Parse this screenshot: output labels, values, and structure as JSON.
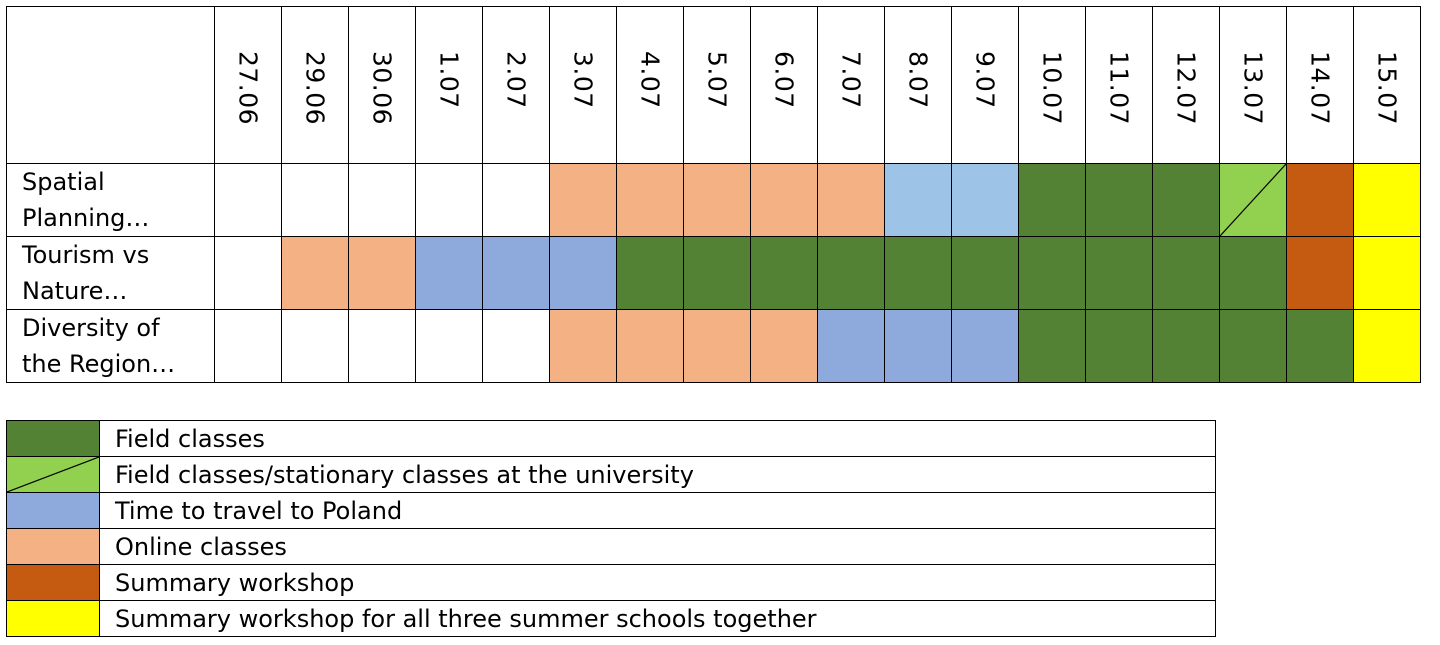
{
  "colors": {
    "field": "#548235",
    "mixed": "#92D050",
    "travel": "#8EA9DB",
    "travel_light": "#9DC3E6",
    "online": "#F4B183",
    "workshop": "#C55A11",
    "all": "#FFFF00",
    "none": "#FFFFFF"
  },
  "dates": [
    "27.06",
    "29.06",
    "30.06",
    "1.07",
    "2.07",
    "3.07",
    "4.07",
    "5.07",
    "6.07",
    "7.07",
    "8.07",
    "9.07",
    "10.07",
    "11.07",
    "12.07",
    "13.07",
    "14.07",
    "15.07"
  ],
  "rows": [
    {
      "label": "Spatial\nPlanning…",
      "cells": [
        "none",
        "none",
        "none",
        "none",
        "none",
        "online",
        "online",
        "online",
        "online",
        "online",
        "travel_light",
        "travel_light",
        "field",
        "field",
        "field",
        "mixed",
        "workshop",
        "all"
      ]
    },
    {
      "label": "Tourism vs\nNature…",
      "cells": [
        "none",
        "online",
        "online",
        "travel",
        "travel",
        "travel",
        "field",
        "field",
        "field",
        "field",
        "field",
        "field",
        "field",
        "field",
        "field",
        "field",
        "workshop",
        "all"
      ]
    },
    {
      "label": "Diversity of\nthe Region…",
      "cells": [
        "none",
        "none",
        "none",
        "none",
        "none",
        "online",
        "online",
        "online",
        "online",
        "travel",
        "travel",
        "travel",
        "field",
        "field",
        "field",
        "field",
        "field",
        "all"
      ]
    }
  ],
  "legend": [
    {
      "key": "field",
      "label": "Field classes"
    },
    {
      "key": "mixed",
      "label": "Field classes/stationary classes at the university"
    },
    {
      "key": "travel",
      "label": "Time to travel to Poland"
    },
    {
      "key": "online",
      "label": "Online classes"
    },
    {
      "key": "workshop",
      "label": "Summary workshop"
    },
    {
      "key": "all",
      "label": "Summary workshop for all three summer schools together"
    }
  ]
}
